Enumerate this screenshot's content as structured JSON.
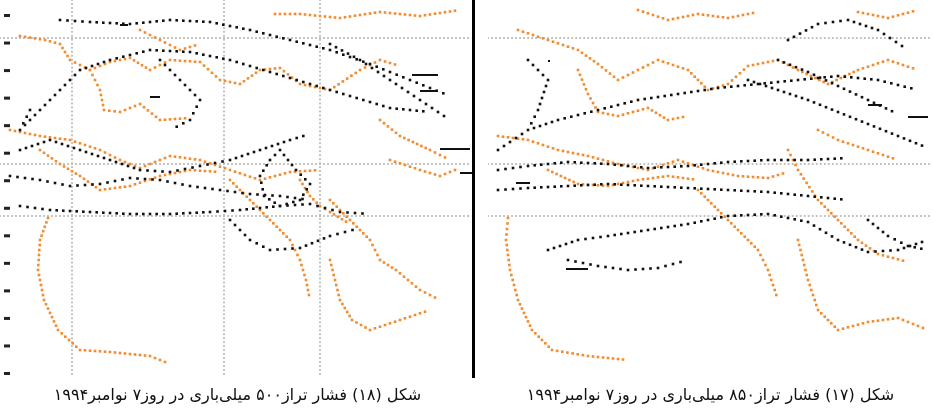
{
  "figures": [
    {
      "id": "fig18",
      "caption": "شکل (۱۸) فشار تراز۵۰۰ میلی‌باری در روز۷ نوامبر۱۹۹۴"
    },
    {
      "id": "fig17",
      "caption": "شکل (۱۷) فشار تراز۸۵۰ میلی‌باری در روز۷ نوامبر۱۹۹۴"
    }
  ],
  "colors": {
    "coastline": "#f28b2e",
    "isobar": "#111111",
    "grid": "#b8b8b8",
    "background": "#ffffff"
  }
}
